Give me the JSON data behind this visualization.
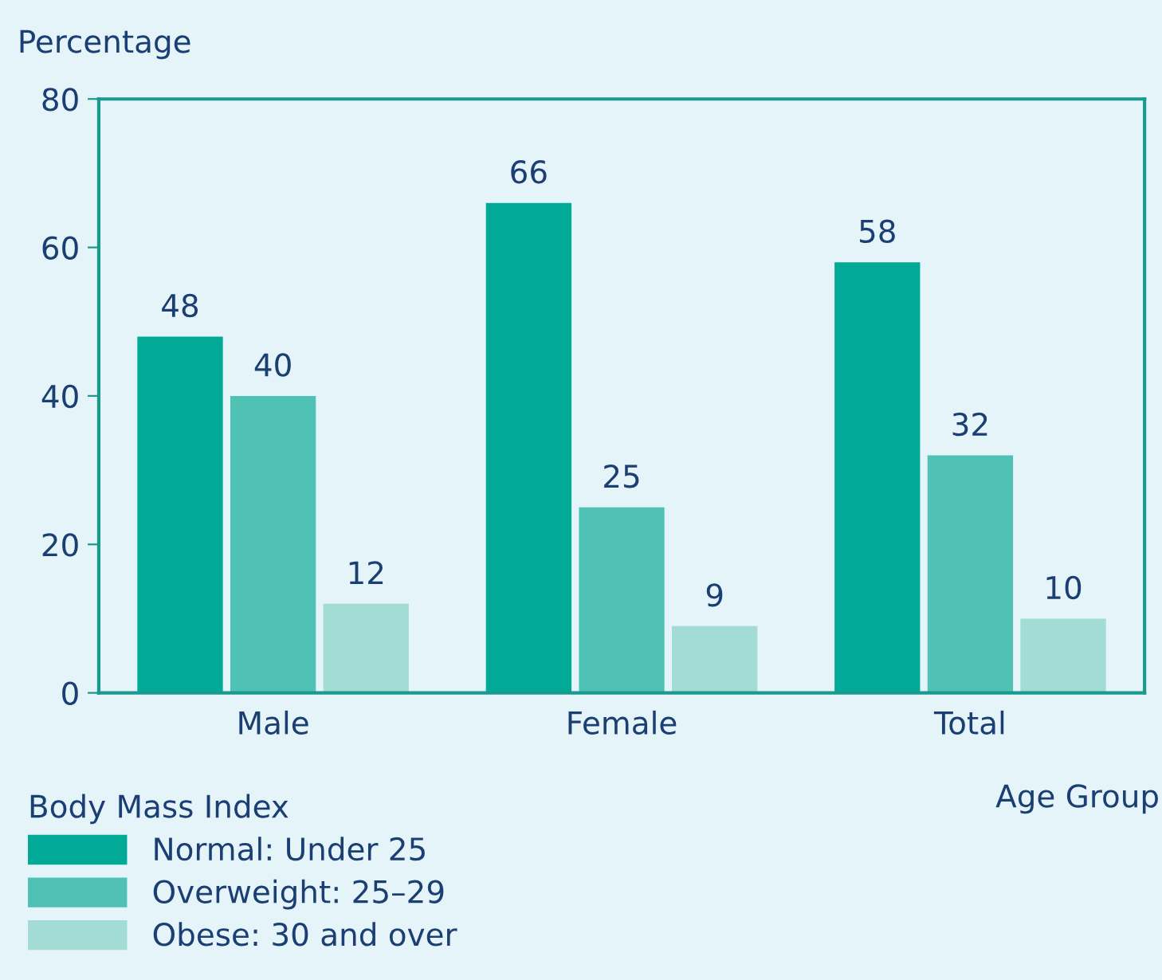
{
  "chart_data": {
    "type": "bar",
    "ylabel": "Percentage",
    "xlabel": "Age Group",
    "legend_title": "Body Mass Index",
    "categories": [
      "Male",
      "Female",
      "Total"
    ],
    "series": [
      {
        "name": "Normal: Under 25",
        "color": "#00aa96",
        "values": [
          48,
          66,
          58
        ]
      },
      {
        "name": "Overweight: 25–29",
        "color": "#4fc2b5",
        "values": [
          40,
          25,
          32
        ]
      },
      {
        "name": "Obese: 30 and over",
        "color": "#a3dbd5",
        "values": [
          12,
          9,
          10
        ]
      }
    ],
    "ylim": [
      0,
      80
    ],
    "yticks": [
      0,
      20,
      40,
      60,
      80
    ],
    "data_labels": true,
    "grid": false,
    "legend": "bottom left"
  }
}
